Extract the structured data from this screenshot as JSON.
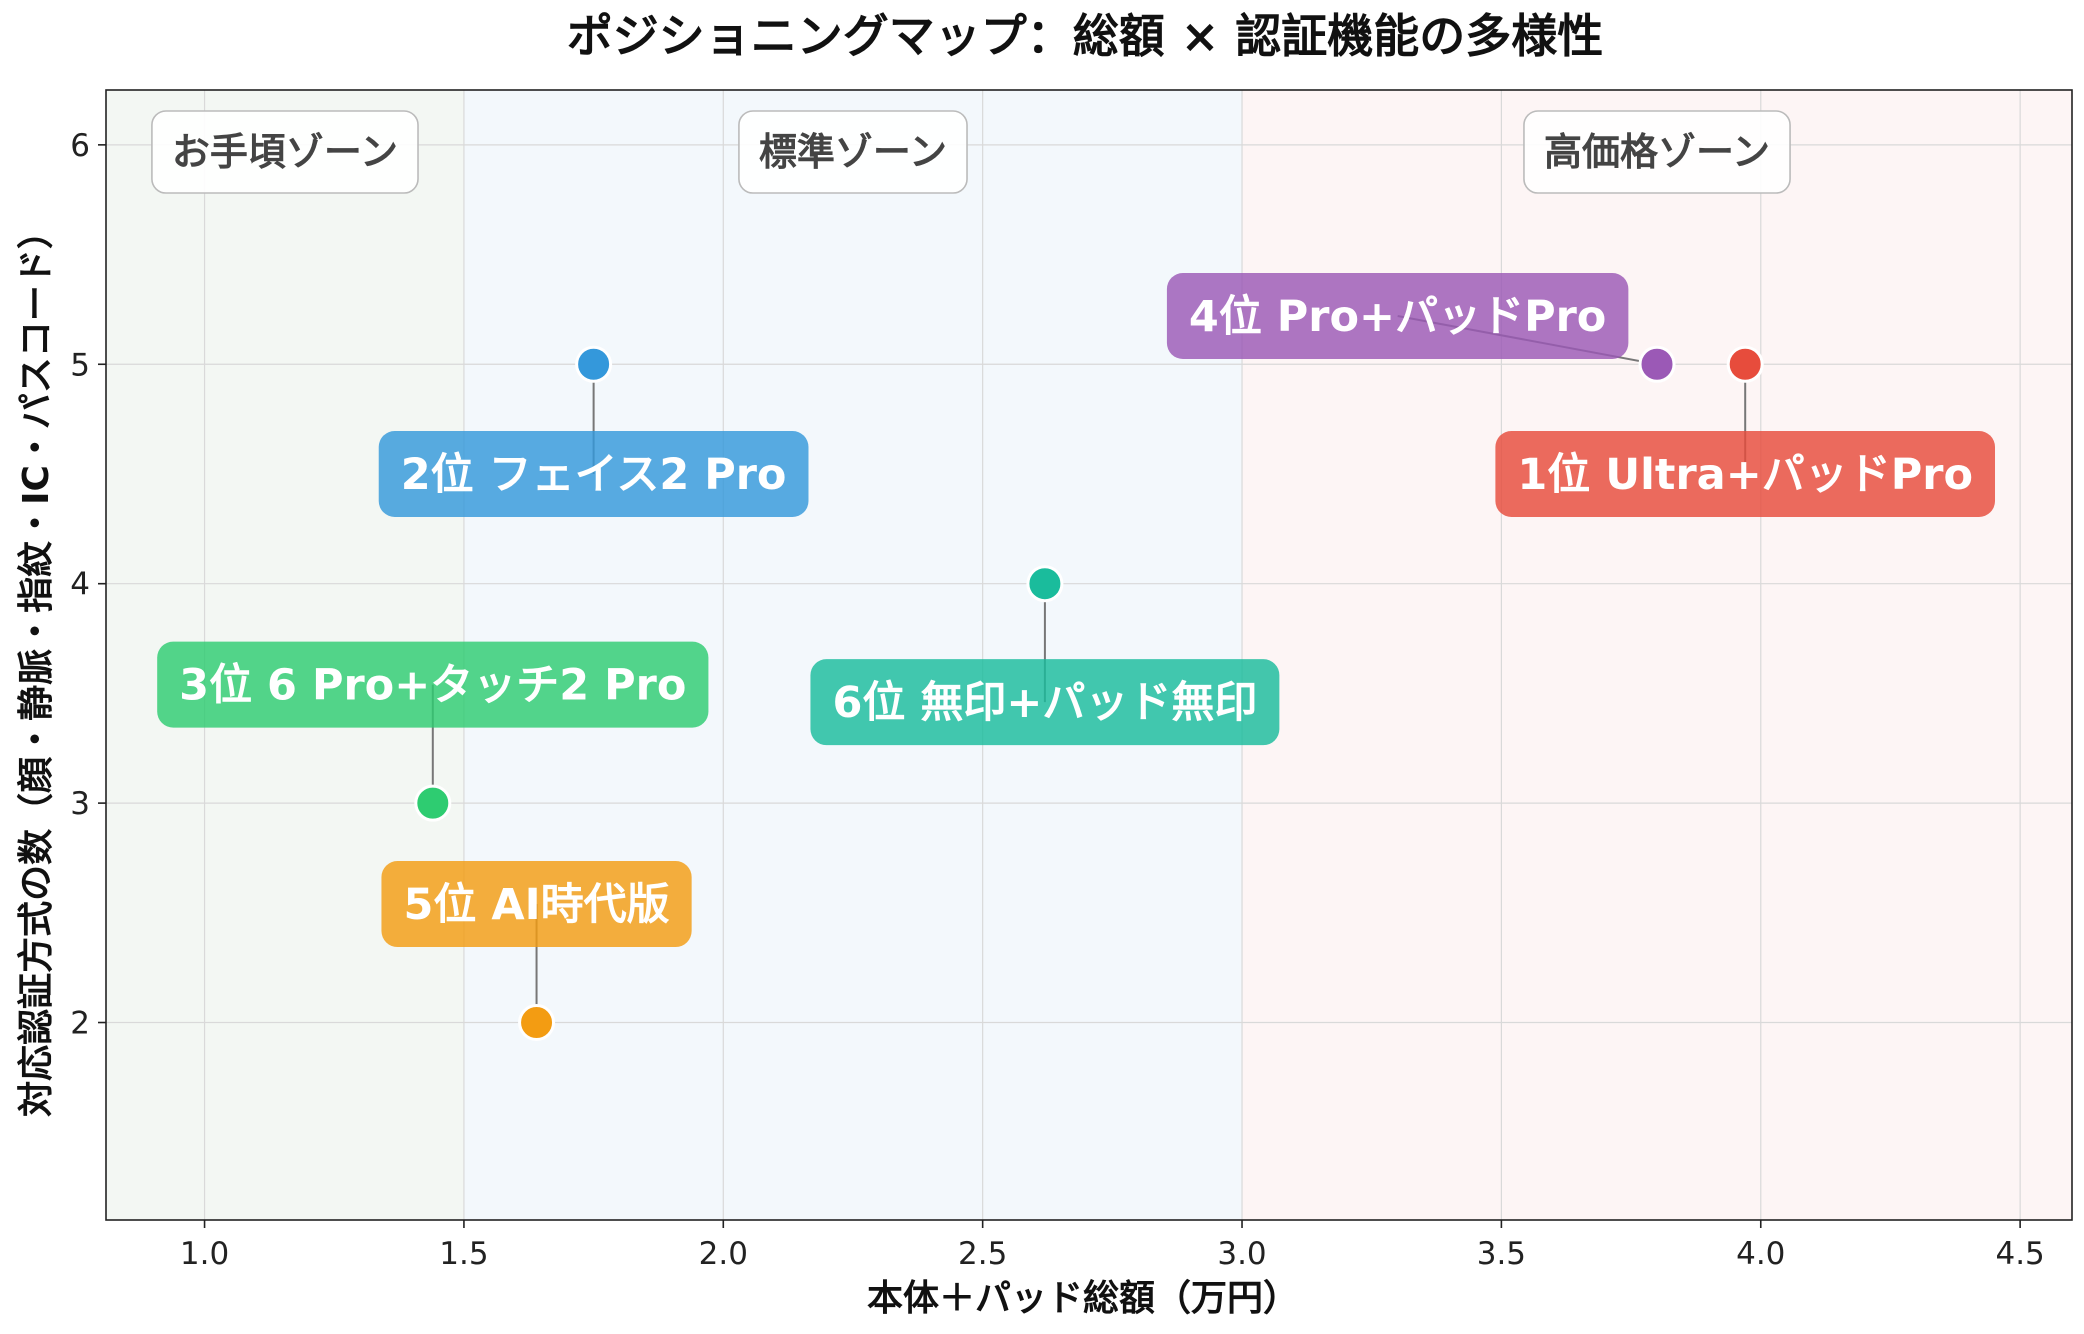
{
  "chart_data": {
    "type": "scatter",
    "title": "ポジショニングマップ：総額 × 認証機能の多様性",
    "xlabel": "本体＋パッド総額（万円）",
    "ylabel": "対応認証方式の数（顔・静脈・指紋・IC・パスコード）",
    "xlim": [
      0.81,
      4.6
    ],
    "ylim": [
      1.1,
      6.25
    ],
    "xticks": [
      "1.0",
      "1.5",
      "2.0",
      "2.5",
      "3.0",
      "3.5",
      "4.0",
      "4.5"
    ],
    "yticks": [
      "2",
      "3",
      "4",
      "5",
      "6"
    ],
    "grid": true,
    "zones": [
      {
        "label": "お手頃ゾーン",
        "x_from": 0.81,
        "x_to": 1.5,
        "color": "#f3f7f3"
      },
      {
        "label": "標準ゾーン",
        "x_from": 1.5,
        "x_to": 3.0,
        "color": "#f3f8fc"
      },
      {
        "label": "高価格ゾーン",
        "x_from": 3.0,
        "x_to": 4.6,
        "color": "#fdf5f5"
      }
    ],
    "points": [
      {
        "label": "1位 Ultra+パッドPro",
        "x": 3.97,
        "y": 5,
        "color": "#e74c3c",
        "label_x": 3.97,
        "label_y": 4.5
      },
      {
        "label": "2位 フェイス2 Pro",
        "x": 1.75,
        "y": 5,
        "color": "#3498db",
        "label_x": 1.75,
        "label_y": 4.5
      },
      {
        "label": "3位 6 Pro+タッチ2 Pro",
        "x": 1.44,
        "y": 3,
        "color": "#2ecc71",
        "label_x": 1.44,
        "label_y": 3.54
      },
      {
        "label": "4位 Pro+パッドPro",
        "x": 3.8,
        "y": 5,
        "color": "#9b59b6",
        "label_x": 3.3,
        "label_y": 5.22
      },
      {
        "label": "5位 AI時代版",
        "x": 1.64,
        "y": 2,
        "color": "#f39c12",
        "label_x": 1.64,
        "label_y": 2.54
      },
      {
        "label": "6位 無印+パッド無印",
        "x": 2.62,
        "y": 4,
        "color": "#1abc9c",
        "label_x": 2.62,
        "label_y": 3.46
      }
    ]
  }
}
